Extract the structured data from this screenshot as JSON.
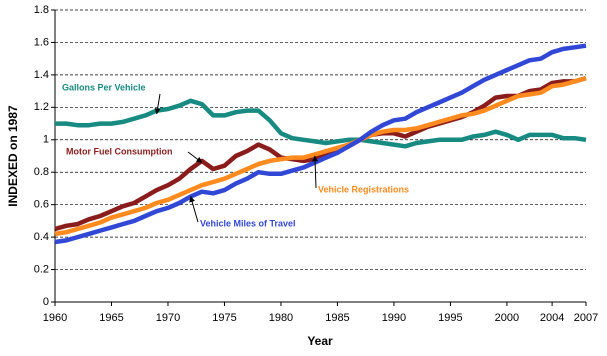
{
  "chart_data": {
    "type": "line",
    "x_label": "Year",
    "y_label": "INDEXED on 1987",
    "x": [
      1960,
      1961,
      1962,
      1963,
      1964,
      1965,
      1966,
      1967,
      1968,
      1969,
      1970,
      1971,
      1972,
      1973,
      1974,
      1975,
      1976,
      1977,
      1978,
      1979,
      1980,
      1981,
      1982,
      1983,
      1984,
      1985,
      1986,
      1987,
      1988,
      1989,
      1990,
      1991,
      1992,
      1993,
      1994,
      1995,
      1996,
      1997,
      1998,
      1999,
      2000,
      2001,
      2002,
      2003,
      2004,
      2005,
      2006,
      2007
    ],
    "xlim": [
      1960,
      2007
    ],
    "xticks": [
      1960,
      1965,
      1970,
      1975,
      1980,
      1985,
      1990,
      1995,
      2000,
      2004,
      2007
    ],
    "ylim": [
      0,
      1.8
    ],
    "yticks": [
      0,
      0.2,
      0.4,
      0.6,
      0.8,
      1,
      1.2,
      1.4,
      1.6,
      1.8
    ],
    "grid": true,
    "series": [
      {
        "name": "Gallons Per Vehicle",
        "color": "#178a82",
        "values": [
          1.1,
          1.1,
          1.09,
          1.09,
          1.1,
          1.1,
          1.11,
          1.13,
          1.15,
          1.18,
          1.19,
          1.21,
          1.24,
          1.22,
          1.15,
          1.15,
          1.17,
          1.18,
          1.18,
          1.12,
          1.04,
          1.01,
          1.0,
          0.99,
          0.98,
          0.99,
          1.0,
          1.0,
          0.99,
          0.98,
          0.97,
          0.96,
          0.98,
          0.99,
          1.0,
          1.0,
          1.0,
          1.02,
          1.03,
          1.05,
          1.03,
          1.0,
          1.03,
          1.03,
          1.03,
          1.01,
          1.01,
          1.0
        ]
      },
      {
        "name": "Motor Fuel Consumption",
        "color": "#8b1c1c",
        "values": [
          0.45,
          0.47,
          0.48,
          0.51,
          0.53,
          0.56,
          0.59,
          0.61,
          0.65,
          0.69,
          0.72,
          0.76,
          0.82,
          0.87,
          0.82,
          0.84,
          0.9,
          0.93,
          0.97,
          0.94,
          0.89,
          0.88,
          0.87,
          0.88,
          0.91,
          0.93,
          0.96,
          1.0,
          1.03,
          1.04,
          1.04,
          1.02,
          1.05,
          1.08,
          1.1,
          1.12,
          1.14,
          1.17,
          1.21,
          1.26,
          1.27,
          1.27,
          1.3,
          1.31,
          1.35,
          1.36,
          1.36,
          1.38
        ]
      },
      {
        "name": "Vehicle Registrations",
        "color": "#ff8a1e",
        "values": [
          0.42,
          0.43,
          0.45,
          0.47,
          0.49,
          0.52,
          0.54,
          0.56,
          0.58,
          0.61,
          0.63,
          0.66,
          0.69,
          0.72,
          0.74,
          0.76,
          0.79,
          0.82,
          0.85,
          0.87,
          0.88,
          0.89,
          0.89,
          0.91,
          0.93,
          0.95,
          0.97,
          1.0,
          1.03,
          1.05,
          1.06,
          1.06,
          1.07,
          1.09,
          1.11,
          1.13,
          1.15,
          1.16,
          1.18,
          1.21,
          1.24,
          1.27,
          1.28,
          1.29,
          1.33,
          1.34,
          1.36,
          1.38
        ]
      },
      {
        "name": "Vehicle Miles of Travel",
        "color": "#3148d6",
        "values": [
          0.37,
          0.38,
          0.4,
          0.42,
          0.44,
          0.46,
          0.48,
          0.5,
          0.53,
          0.56,
          0.58,
          0.61,
          0.65,
          0.68,
          0.67,
          0.69,
          0.73,
          0.76,
          0.8,
          0.79,
          0.79,
          0.81,
          0.83,
          0.86,
          0.89,
          0.92,
          0.96,
          1.0,
          1.05,
          1.09,
          1.12,
          1.13,
          1.17,
          1.2,
          1.23,
          1.26,
          1.29,
          1.33,
          1.37,
          1.4,
          1.43,
          1.46,
          1.49,
          1.5,
          1.54,
          1.56,
          1.57,
          1.58
        ]
      }
    ]
  }
}
